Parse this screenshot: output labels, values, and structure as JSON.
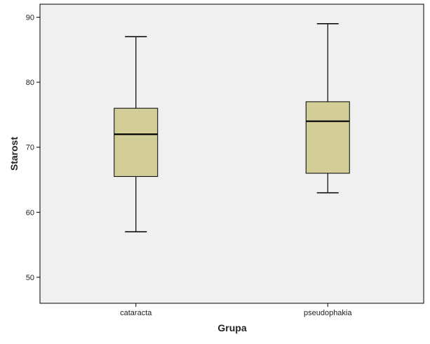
{
  "chart_data": {
    "type": "boxplot",
    "xlabel": "Grupa",
    "ylabel": "Starost",
    "ylim": [
      46,
      92
    ],
    "yticks": [
      50,
      60,
      70,
      80,
      90
    ],
    "grid": false,
    "categories": [
      "cataracta",
      "pseudophakia"
    ],
    "boxes": [
      {
        "category": "cataracta",
        "min": 57,
        "q1": 65.5,
        "median": 72,
        "q3": 76,
        "max": 87
      },
      {
        "category": "pseudophakia",
        "min": 63,
        "q1": 66,
        "median": 74,
        "q3": 77,
        "max": 89
      }
    ],
    "colors": {
      "plot_background": "#f0f0f0",
      "box_fill": "#d3ce97",
      "stroke": "#000000"
    }
  }
}
